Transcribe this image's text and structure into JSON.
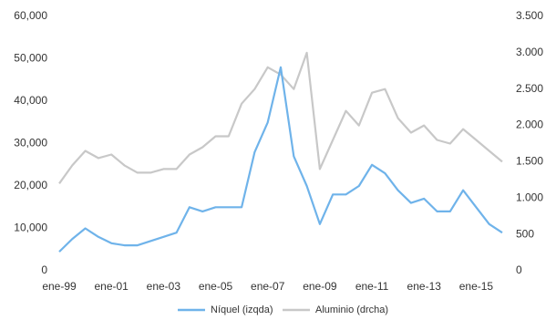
{
  "chart_data": {
    "type": "line",
    "x": [
      "ene-99",
      null,
      null,
      null,
      "ene-01",
      null,
      null,
      null,
      "ene-03",
      null,
      null,
      null,
      "ene-05",
      null,
      null,
      null,
      "ene-07",
      null,
      null,
      null,
      "ene-09",
      null,
      null,
      null,
      "ene-11",
      null,
      null,
      null,
      "ene-13",
      null,
      null,
      null,
      "ene-15",
      null,
      null
    ],
    "series": [
      {
        "name": "Níquel (izqda)",
        "color": "#6fb3ea",
        "values": [
          4500,
          7500,
          10000,
          8000,
          6500,
          6000,
          6000,
          7000,
          8000,
          9000,
          15000,
          14000,
          15000,
          15000,
          15000,
          28000,
          35000,
          48000,
          27000,
          20000,
          11000,
          18000,
          18000,
          20000,
          25000,
          23000,
          19000,
          16000,
          17000,
          14000,
          14000,
          19000,
          15000,
          11000,
          9000
        ]
      },
      {
        "name": "Aluminio (drcha)",
        "color": "#c8c8c8",
        "axis": "y2",
        "values": [
          1200,
          1450,
          1650,
          1550,
          1600,
          1450,
          1350,
          1350,
          1400,
          1400,
          1600,
          1700,
          1850,
          1850,
          2300,
          2500,
          2800,
          2700,
          2500,
          3000,
          1400,
          1800,
          2200,
          2000,
          2450,
          2500,
          2100,
          1900,
          2000,
          1800,
          1750,
          1950,
          1800,
          1650,
          1500
        ]
      }
    ],
    "ylim": [
      0,
      60000
    ],
    "yticks": [
      0,
      {
        "value": 10000,
        "label": "10,000"
      },
      {
        "value": 20000,
        "label": "20,000"
      },
      {
        "value": 30000,
        "label": "30,000"
      },
      {
        "value": 40000,
        "label": "40,000"
      },
      {
        "value": 50000,
        "label": "50,000"
      },
      {
        "value": 60000,
        "label": "60,000"
      }
    ],
    "y2lim": [
      0,
      3500
    ],
    "y2ticks": [
      0,
      500,
      {
        "value": 1000,
        "label": "1.000"
      },
      {
        "value": 1500,
        "label": "1.500"
      },
      {
        "value": 2000,
        "label": "2.000"
      },
      {
        "value": 2500,
        "label": "2.500"
      },
      {
        "value": 3000,
        "label": "3.000"
      },
      {
        "value": 3500,
        "label": "3.500"
      }
    ],
    "grid": false,
    "legend": "bottom"
  }
}
